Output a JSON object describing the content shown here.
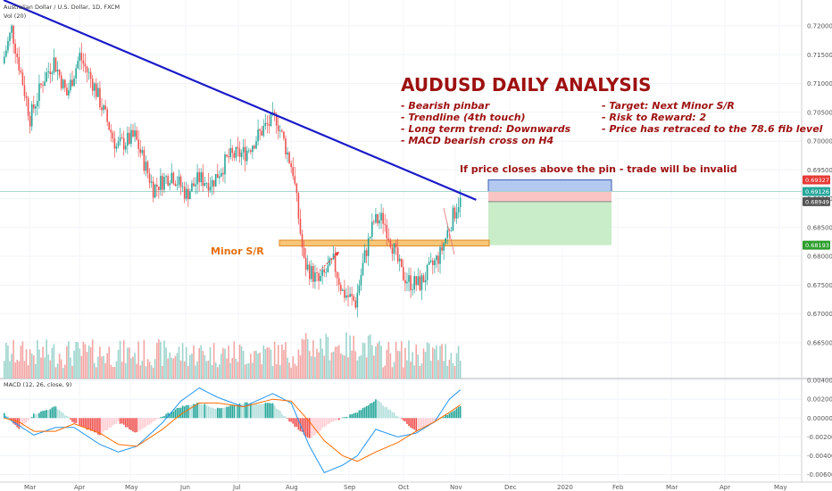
{
  "header": {
    "symbol": "Australian Dollar / U.S. Dollar, 1D, FXCM",
    "volume_label": "Vol (20)",
    "macd_label": "MACD (12, 26, close, 9)"
  },
  "annotations": {
    "title": "AUDUSD DAILY ANALYSIS",
    "bullets_left": [
      "- Bearish pinbar",
      "- Trendline (4th touch)",
      "- Long term trend: Downwards",
      "- MACD bearish cross on H4"
    ],
    "bullets_right": [
      "- Target: Next Minor S/R",
      "- Risk to Reward: 2",
      "- Price has retraced to the 78.6 fib level"
    ],
    "invalid_note": "If price closes above the pin - trade will be invalid",
    "minor_sr": "Minor S/R"
  },
  "price_tags": [
    {
      "value": "0.69327",
      "color": "#e53935"
    },
    {
      "value": "0.69126",
      "color": "#26a69a"
    },
    {
      "value": "0.68949",
      "color": "#555555"
    },
    {
      "value": "0.68193",
      "color": "#2e9e2e"
    }
  ],
  "chart_data": {
    "type": "candlestick",
    "symbol": "AUDUSD",
    "timeframe": "1D",
    "x_ticks": [
      "Mar",
      "Apr",
      "May",
      "Jun",
      "Jul",
      "Aug",
      "Sep",
      "Oct",
      "Nov",
      "Dec",
      "2020",
      "Feb",
      "Mar",
      "Apr",
      "May"
    ],
    "price_axis": {
      "ticks": [
        "0.72000",
        "0.71500",
        "0.71000",
        "0.70500",
        "0.70000",
        "0.69500",
        "0.69000",
        "0.68500",
        "0.68000",
        "0.67500",
        "0.67000",
        "0.66500"
      ],
      "range": [
        0.6625,
        0.7245
      ]
    },
    "macd_axis": {
      "ticks": [
        "0.00400",
        "0.00200",
        "0.00000",
        "-0.00200",
        "-0.00400",
        "-0.00600"
      ],
      "range": [
        -0.0068,
        0.0042
      ]
    },
    "price_path": [
      [
        0,
        0.7135
      ],
      [
        5,
        0.7195
      ],
      [
        15,
        0.704
      ],
      [
        22,
        0.7105
      ],
      [
        28,
        0.714
      ],
      [
        35,
        0.708
      ],
      [
        42,
        0.7148
      ],
      [
        50,
        0.7095
      ],
      [
        62,
        0.699
      ],
      [
        72,
        0.7008
      ],
      [
        82,
        0.6918
      ],
      [
        92,
        0.6944
      ],
      [
        100,
        0.6908
      ],
      [
        107,
        0.6935
      ],
      [
        114,
        0.6928
      ],
      [
        123,
        0.6972
      ],
      [
        132,
        0.698
      ],
      [
        142,
        0.7022
      ],
      [
        149,
        0.704
      ],
      [
        158,
        0.6948
      ],
      [
        164,
        0.6788
      ],
      [
        172,
        0.6755
      ],
      [
        180,
        0.679
      ],
      [
        185,
        0.6738
      ],
      [
        192,
        0.672
      ],
      [
        197,
        0.68
      ],
      [
        202,
        0.686
      ],
      [
        207,
        0.6865
      ],
      [
        212,
        0.682
      ],
      [
        217,
        0.677
      ],
      [
        222,
        0.6754
      ],
      [
        227,
        0.6752
      ],
      [
        232,
        0.6775
      ],
      [
        238,
        0.6803
      ],
      [
        243,
        0.6852
      ],
      [
        248,
        0.6895
      ]
    ],
    "macd_histogram_path": [
      [
        0,
        0.0005
      ],
      [
        8,
        -0.0012
      ],
      [
        16,
        0.0004
      ],
      [
        28,
        0.0012
      ],
      [
        38,
        -0.0005
      ],
      [
        52,
        -0.0018
      ],
      [
        62,
        -0.0004
      ],
      [
        72,
        -0.0016
      ],
      [
        86,
        0.0002
      ],
      [
        96,
        0.0012
      ],
      [
        106,
        0.0016
      ],
      [
        116,
        0.001
      ],
      [
        130,
        0.0016
      ],
      [
        146,
        0.0015
      ],
      [
        156,
        -0.0005
      ],
      [
        166,
        -0.0022
      ],
      [
        178,
        -0.0004
      ],
      [
        192,
        0.0006
      ],
      [
        202,
        0.002
      ],
      [
        214,
        0.0002
      ],
      [
        224,
        -0.0014
      ],
      [
        234,
        -0.0004
      ],
      [
        248,
        0.0012
      ]
    ],
    "macd_line_path": [
      [
        0,
        0.0002
      ],
      [
        8,
        -0.0008
      ],
      [
        16,
        -0.0018
      ],
      [
        28,
        -0.001
      ],
      [
        38,
        -0.001
      ],
      [
        52,
        -0.0028
      ],
      [
        62,
        -0.0036
      ],
      [
        72,
        -0.003
      ],
      [
        86,
        -0.0005
      ],
      [
        96,
        0.0018
      ],
      [
        106,
        0.0032
      ],
      [
        116,
        0.0022
      ],
      [
        130,
        0.0012
      ],
      [
        146,
        0.0026
      ],
      [
        156,
        0.0016
      ],
      [
        166,
        -0.003
      ],
      [
        174,
        -0.0058
      ],
      [
        184,
        -0.005
      ],
      [
        192,
        -0.004
      ],
      [
        202,
        -0.0012
      ],
      [
        214,
        -0.002
      ],
      [
        224,
        -0.0016
      ],
      [
        234,
        -0.0004
      ],
      [
        242,
        0.002
      ],
      [
        248,
        0.003
      ]
    ],
    "signal_line_path": [
      [
        0,
        0.0
      ],
      [
        8,
        -0.0004
      ],
      [
        16,
        -0.0014
      ],
      [
        28,
        -0.0014
      ],
      [
        38,
        -0.0006
      ],
      [
        52,
        -0.0016
      ],
      [
        62,
        -0.0028
      ],
      [
        72,
        -0.003
      ],
      [
        86,
        -0.0012
      ],
      [
        96,
        0.0004
      ],
      [
        106,
        0.0016
      ],
      [
        116,
        0.0016
      ],
      [
        130,
        0.0012
      ],
      [
        146,
        0.002
      ],
      [
        156,
        0.0018
      ],
      [
        166,
        -0.0004
      ],
      [
        174,
        -0.0024
      ],
      [
        184,
        -0.004
      ],
      [
        192,
        -0.0046
      ],
      [
        202,
        -0.0036
      ],
      [
        214,
        -0.0026
      ],
      [
        224,
        -0.0014
      ],
      [
        234,
        -0.0004
      ],
      [
        242,
        0.0006
      ],
      [
        248,
        0.0014
      ]
    ],
    "trendline": {
      "from": [
        0,
        0.7245
      ],
      "to": [
        257,
        0.6898
      ]
    },
    "minor_sr_zone": [
      0.6818,
      0.6828
    ],
    "trade_zones": {
      "stop": [
        0.69126,
        0.69327
      ],
      "risk": [
        0.68949,
        0.69126
      ],
      "reward": [
        0.68193,
        0.68949
      ]
    }
  }
}
